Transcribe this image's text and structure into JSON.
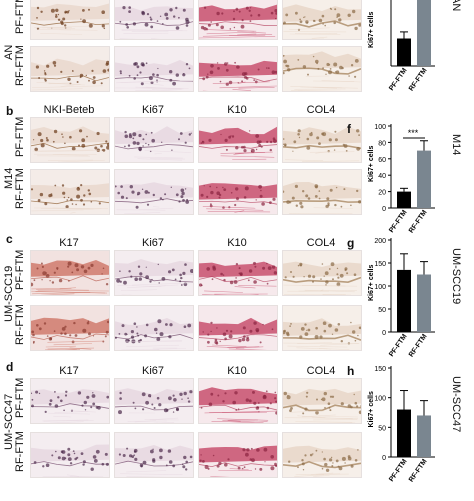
{
  "sections": [
    {
      "id": "a",
      "letter": "",
      "chart_letter": "",
      "cell_line": "AN",
      "columns": [],
      "rows": [
        "PF-FTM",
        "RF-FTM"
      ],
      "stain_themes": [
        "brown",
        "purple",
        "pink",
        "col4"
      ],
      "chart": {
        "ylabel": "Ki67+ cells",
        "categories": [
          "PF-FTM",
          "RF-FTM"
        ],
        "values": [
          25,
          60
        ],
        "errors": [
          6,
          0
        ],
        "ymax": 60,
        "ticks": [],
        "sig": ""
      }
    },
    {
      "id": "b",
      "letter": "b",
      "chart_letter": "f",
      "cell_line": "M14",
      "columns": [
        "NKI-Beteb",
        "Ki67",
        "K10",
        "COL4"
      ],
      "rows": [
        "PF-FTM",
        "RF-FTM"
      ],
      "stain_themes": [
        "brown",
        "purple",
        "pink",
        "col4"
      ],
      "chart": {
        "ylabel": "Ki67+ cells",
        "categories": [
          "PF-FTM",
          "RF-FTM"
        ],
        "values": [
          20,
          70
        ],
        "errors": [
          4,
          12
        ],
        "ymax": 100,
        "ticks": [
          0,
          20,
          40,
          60,
          80,
          100
        ],
        "sig": "***"
      }
    },
    {
      "id": "c",
      "letter": "c",
      "chart_letter": "g",
      "cell_line": "UM-SCC19",
      "columns": [
        "K17",
        "Ki67",
        "K10",
        "COL4"
      ],
      "rows": [
        "PF-FTM",
        "RF-FTM"
      ],
      "stain_themes": [
        "red",
        "purple",
        "pink",
        "col4"
      ],
      "chart": {
        "ylabel": "Ki67+ cells",
        "categories": [
          "PF-FTM",
          "RF-FTM"
        ],
        "values": [
          135,
          125
        ],
        "errors": [
          35,
          28
        ],
        "ymax": 200,
        "ticks": [
          0,
          50,
          100,
          150,
          200
        ],
        "sig": ""
      }
    },
    {
      "id": "d",
      "letter": "d",
      "chart_letter": "h",
      "cell_line": "UM-SCC47",
      "columns": [
        "K17",
        "Ki67",
        "K10",
        "COL4"
      ],
      "rows": [
        "PF-FTM",
        "RF-FTM"
      ],
      "stain_themes": [
        "purple",
        "purple",
        "pink",
        "col4"
      ],
      "chart": {
        "ylabel": "Ki67+ cells",
        "categories": [
          "PF-FTM",
          "RF-FTM"
        ],
        "values": [
          80,
          70
        ],
        "errors": [
          32,
          25
        ],
        "ymax": 150,
        "ticks": [
          0,
          50,
          100,
          150
        ],
        "sig": ""
      }
    }
  ],
  "colors": {
    "bar_pf": "#000000",
    "bar_rf": "#7a8690"
  }
}
